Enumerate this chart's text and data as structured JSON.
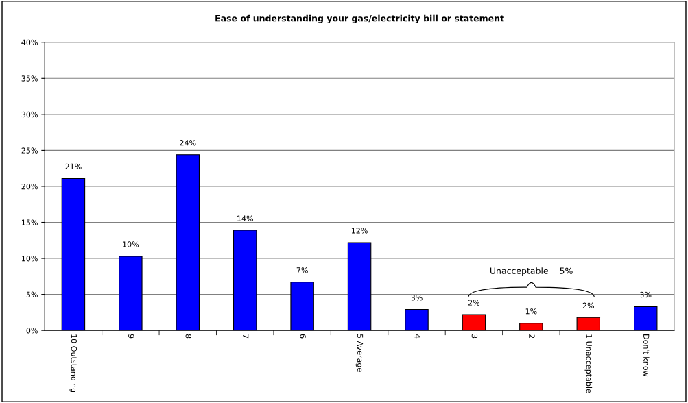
{
  "chart_data": {
    "type": "bar",
    "title": "Ease of understanding your gas/electricity bill or statement",
    "categories": [
      "10 Outstanding",
      "9",
      "8",
      "7",
      "6",
      "5 Average",
      "4",
      "3",
      "2",
      "1 Unacceptable",
      "Don't know"
    ],
    "values": [
      21.1,
      10.3,
      24.4,
      13.9,
      6.7,
      12.2,
      2.9,
      2.2,
      1.0,
      1.8,
      3.3
    ],
    "colors": [
      "#0000ff",
      "#0000ff",
      "#0000ff",
      "#0000ff",
      "#0000ff",
      "#0000ff",
      "#0000ff",
      "#ff0000",
      "#ff0000",
      "#ff0000",
      "#0000ff"
    ],
    "value_labels": [
      "21%",
      "10%",
      "24%",
      "14%",
      "7%",
      "12%",
      "3%",
      "2%",
      "1%",
      "2%",
      "3%"
    ],
    "ylim": [
      0,
      40
    ],
    "yticks": [
      {
        "value": 0,
        "label": "0%"
      },
      {
        "value": 5,
        "label": "5%"
      },
      {
        "value": 10,
        "label": "10%"
      },
      {
        "value": 15,
        "label": "15%"
      },
      {
        "value": 20,
        "label": "20%"
      },
      {
        "value": 25,
        "label": "25%"
      },
      {
        "value": 30,
        "label": "30%"
      },
      {
        "value": 35,
        "label": "35%"
      },
      {
        "value": 40,
        "label": "40%"
      }
    ],
    "grid": "y",
    "annotations": [
      "Unacceptable    5%"
    ]
  }
}
